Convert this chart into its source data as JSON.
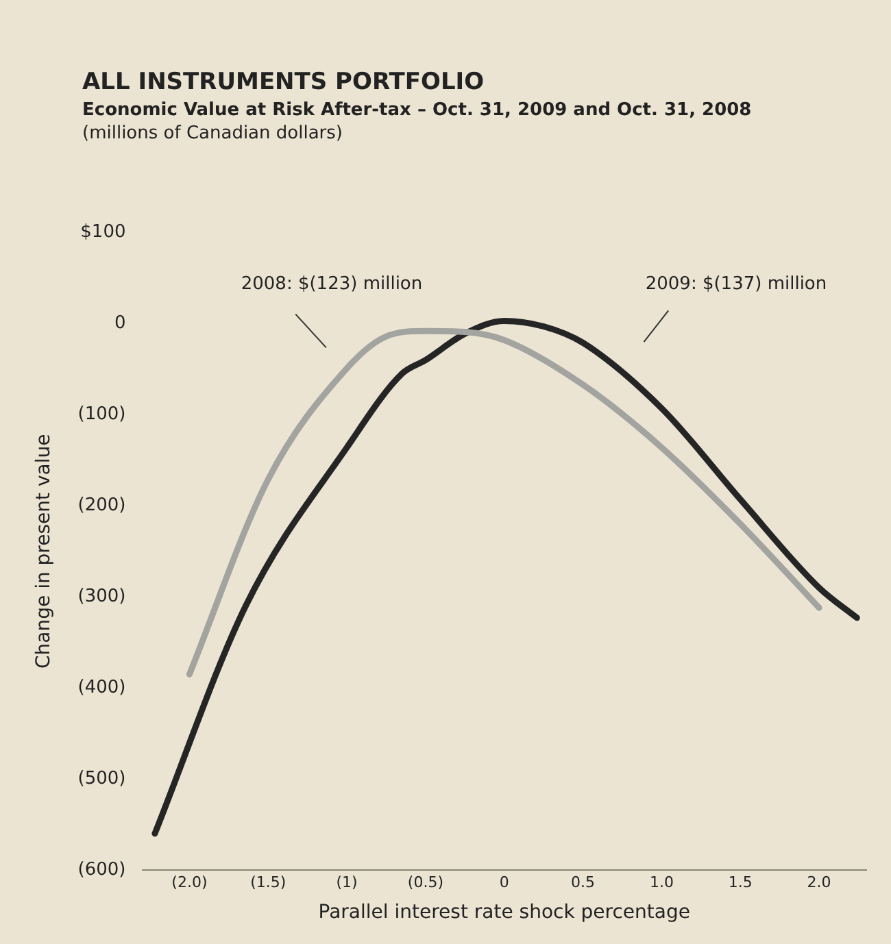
{
  "chart_data": {
    "type": "line",
    "title": "ALL INSTRUMENTS PORTFOLIO",
    "subtitle": "Economic Value at Risk After-tax – Oct. 31, 2009 and Oct. 31, 2008",
    "xlabel": "Parallel interest rate shock percentage",
    "ylabel": "Change in present value",
    "annotations": [
      "(millions of Canadian dollars)",
      "2008: $(123) million",
      "2009: $(137) million"
    ],
    "series": [
      {
        "color": "#a3a3a0",
        "x": [
          -2.0,
          -1.5,
          -1.0,
          -0.75,
          -0.5,
          -0.25,
          0,
          0.5,
          1.0,
          1.5,
          2.0
        ],
        "values": [
          -385,
          -171,
          -49,
          -14,
          -8,
          -9,
          -18,
          -67,
          -136,
          -220,
          -312
        ]
      },
      {
        "color": "#252525",
        "x": [
          -2.22,
          -1.64,
          -1.0,
          -0.65,
          -0.5,
          -0.25,
          0,
          0.25,
          0.5,
          1.0,
          1.5,
          2.0,
          2.24
        ],
        "values": [
          -560,
          -309,
          -136,
          -55,
          -40,
          -11,
          3,
          -3,
          -21,
          -93,
          -193,
          -290,
          -323
        ]
      }
    ],
    "xlim": [
      -2.3,
      2.3
    ],
    "ylim": [
      -600,
      100
    ],
    "xticks": [
      {
        "value": -2,
        "label": "(2.0)"
      },
      {
        "value": -1.5,
        "label": "(1.5)"
      },
      {
        "value": -1,
        "label": "(1)"
      },
      {
        "value": -0.5,
        "label": "(0.5)"
      },
      0,
      {
        "value": 0.5,
        "label": "0.5"
      },
      {
        "value": 1,
        "label": "1.0"
      },
      {
        "value": 1.5,
        "label": "1.5"
      },
      {
        "value": 2,
        "label": "2.0"
      }
    ],
    "yticks": [
      {
        "value": 100,
        "label": "$100"
      },
      0,
      {
        "value": -100,
        "label": "(100)"
      },
      {
        "value": -200,
        "label": "(200)"
      },
      {
        "value": -300,
        "label": "(300)"
      },
      {
        "value": -400,
        "label": "(400)"
      },
      {
        "value": -500,
        "label": "(500)"
      },
      {
        "value": -600,
        "label": "(600)"
      }
    ],
    "grid": false,
    "legend": false,
    "marker": "none",
    "line_style": "solid"
  }
}
